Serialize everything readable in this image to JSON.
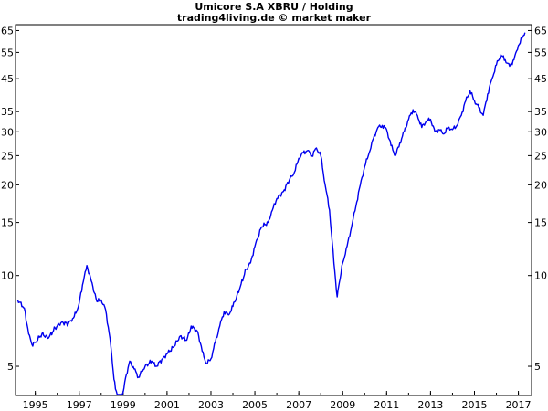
{
  "chart_data": {
    "type": "line",
    "title": "Umicore S.A XBRU / Holding",
    "subtitle": "trading4living.de © market maker",
    "x_ticks": [
      "1995",
      "1997",
      "1999",
      "2001",
      "2003",
      "2005",
      "2007",
      "2009",
      "2011",
      "2013",
      "2015",
      "2017"
    ],
    "y_ticks": [
      "65",
      "55",
      "45",
      "35",
      "30",
      "25",
      "20",
      "15",
      "10",
      "5"
    ],
    "y_scale": "log",
    "ylim": [
      4.0,
      68.0
    ],
    "xlim": [
      1994.1,
      2017.6
    ],
    "line_color": "#0000ee",
    "series": [
      {
        "x": [
          1994.2,
          1994.5,
          1994.7,
          1994.85,
          1995.0,
          1995.3,
          1995.6,
          1995.9,
          1996.2,
          1996.5,
          1996.7,
          1996.85,
          1997.0,
          1997.15,
          1997.35,
          1997.55,
          1997.8,
          1998.0,
          1998.2,
          1998.4,
          1998.55,
          1998.65,
          1998.85,
          1999.0,
          1999.15,
          1999.3,
          1999.5,
          1999.7,
          1999.85,
          2000.0,
          2000.3,
          2000.5,
          2000.8,
          2001.0,
          2001.3,
          2001.6,
          2001.9,
          2002.1,
          2002.4,
          2002.6,
          2002.8,
          2003.0,
          2003.2,
          2003.4,
          2003.6,
          2003.8,
          2004.0,
          2004.3,
          2004.6,
          2004.8,
          2005.0,
          2005.3,
          2005.6,
          2005.8,
          2006.0,
          2006.3,
          2006.6,
          2006.8,
          2007.0,
          2007.2,
          2007.4,
          2007.6,
          2007.8,
          2008.0,
          2008.2,
          2008.4,
          2008.6,
          2008.75,
          2008.85,
          2009.0,
          2009.2,
          2009.4,
          2009.6,
          2009.8,
          2010.0,
          2010.2,
          2010.4,
          2010.6,
          2010.8,
          2011.0,
          2011.2,
          2011.4,
          2011.6,
          2011.8,
          2012.0,
          2012.2,
          2012.4,
          2012.6,
          2012.8,
          2013.0,
          2013.2,
          2013.4,
          2013.6,
          2013.8,
          2014.0,
          2014.2,
          2014.4,
          2014.6,
          2014.8,
          2015.0,
          2015.2,
          2015.4,
          2015.6,
          2015.8,
          2016.0,
          2016.2,
          2016.4,
          2016.6,
          2016.8,
          2017.0,
          2017.2,
          2017.3
        ],
        "y": [
          8.3,
          7.8,
          6.4,
          5.9,
          6.0,
          6.4,
          6.2,
          6.7,
          7.0,
          6.9,
          7.2,
          7.5,
          8.1,
          9.3,
          10.8,
          9.6,
          8.2,
          8.3,
          7.7,
          6.2,
          4.8,
          4.2,
          3.9,
          4.1,
          4.7,
          5.2,
          4.9,
          4.6,
          4.8,
          5.0,
          5.2,
          5.0,
          5.3,
          5.5,
          5.8,
          6.3,
          6.1,
          6.8,
          6.5,
          5.6,
          5.1,
          5.3,
          6.0,
          6.8,
          7.6,
          7.4,
          7.9,
          9.0,
          10.5,
          11.0,
          12.5,
          14.5,
          15.0,
          16.5,
          18.0,
          19.0,
          21.0,
          22.0,
          24.5,
          25.5,
          26.0,
          25.0,
          26.5,
          25.0,
          20.0,
          16.5,
          11.0,
          8.5,
          9.5,
          11.0,
          12.5,
          14.5,
          17.0,
          20.0,
          23.0,
          25.5,
          28.5,
          31.0,
          31.5,
          30.5,
          27.0,
          25.0,
          27.5,
          30.0,
          33.0,
          35.5,
          34.0,
          31.0,
          32.5,
          33.0,
          30.0,
          30.5,
          29.5,
          31.0,
          30.5,
          31.5,
          34.0,
          38.0,
          41.0,
          38.0,
          36.0,
          34.0,
          40.0,
          45.0,
          50.0,
          54.0,
          52.0,
          49.5,
          52.0,
          58.0,
          62.0,
          64.0
        ]
      }
    ]
  }
}
